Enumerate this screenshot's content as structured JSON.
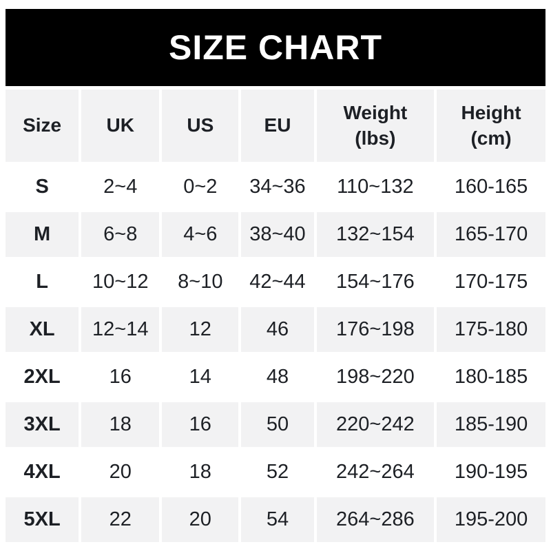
{
  "display": {
    "headers": [
      "Size",
      "UK",
      "US",
      "EU",
      "Weight\n(lbs)",
      "Height\n(cm)"
    ]
  },
  "colors": {
    "banner_bg": "#000000",
    "banner_text": "#ffffff",
    "row_bg": "#ffffff",
    "row_alt_bg": "#f2f2f3",
    "text": "#1d2025",
    "page_bg": "#ffffff"
  },
  "chart_data": {
    "type": "table",
    "title": "SIZE CHART",
    "columns": [
      "Size",
      "UK",
      "US",
      "EU",
      "Weight (lbs)",
      "Height (cm)"
    ],
    "rows": [
      [
        "S",
        "2~4",
        "0~2",
        "34~36",
        "110~132",
        "160-165"
      ],
      [
        "M",
        "6~8",
        "4~6",
        "38~40",
        "132~154",
        "165-170"
      ],
      [
        "L",
        "10~12",
        "8~10",
        "42~44",
        "154~176",
        "170-175"
      ],
      [
        "XL",
        "12~14",
        "12",
        "46",
        "176~198",
        "175-180"
      ],
      [
        "2XL",
        "16",
        "14",
        "48",
        "198~220",
        "180-185"
      ],
      [
        "3XL",
        "18",
        "16",
        "50",
        "220~242",
        "185-190"
      ],
      [
        "4XL",
        "20",
        "18",
        "52",
        "242~264",
        "190-195"
      ],
      [
        "5XL",
        "22",
        "20",
        "54",
        "264~286",
        "195-200"
      ]
    ],
    "layout": {
      "legend": "none",
      "grid": "off",
      "row_striping": "alternating white / light-gray starting with header gray"
    }
  }
}
